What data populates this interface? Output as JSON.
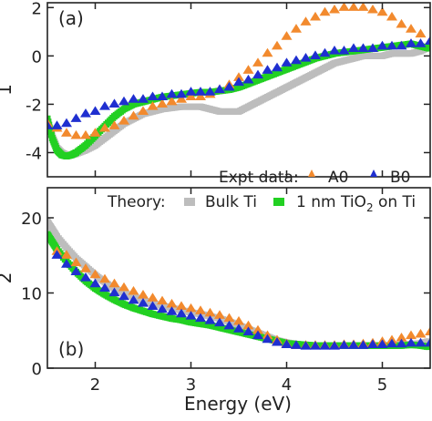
{
  "figure": {
    "xlabel": "Energy (eV)",
    "legend": {
      "expt_label": "Expt data:",
      "theory_label": "Theory:",
      "entries": [
        {
          "key": "A0",
          "label": "A0",
          "marker": "triangle",
          "color": "#f28a2e"
        },
        {
          "key": "B0",
          "label": "B0",
          "marker": "triangle",
          "color": "#1f2fd0"
        },
        {
          "key": "bulk",
          "label": "Bulk Ti",
          "marker": "square",
          "color": "#bdbdbd"
        },
        {
          "key": "film",
          "label_main": "1 nm TiO",
          "label_sub": "2",
          "label_tail": " on Ti",
          "marker": "square",
          "color": "#22d022"
        }
      ]
    }
  },
  "chart_data": [
    {
      "type": "scatter",
      "panel_label": "(a)",
      "ylabel": "1",
      "xlim": [
        1.5,
        5.5
      ],
      "ylim": [
        -5,
        2.2
      ],
      "xticks": [
        2,
        3,
        4,
        5
      ],
      "yticks": [
        -4,
        -2,
        0,
        2
      ],
      "series": [
        {
          "key": "A0",
          "x": [
            1.5,
            1.6,
            1.7,
            1.8,
            1.9,
            2.0,
            2.1,
            2.2,
            2.3,
            2.4,
            2.5,
            2.6,
            2.7,
            2.8,
            2.9,
            3.0,
            3.1,
            3.2,
            3.3,
            3.4,
            3.5,
            3.6,
            3.7,
            3.8,
            3.9,
            4.0,
            4.1,
            4.2,
            4.3,
            4.4,
            4.5,
            4.6,
            4.7,
            4.8,
            4.9,
            5.0,
            5.1,
            5.2,
            5.3,
            5.4,
            5.5
          ],
          "y": [
            -2.8,
            -3.0,
            -3.2,
            -3.3,
            -3.3,
            -3.2,
            -3.0,
            -2.9,
            -2.7,
            -2.5,
            -2.3,
            -2.1,
            -2.0,
            -1.9,
            -1.8,
            -1.7,
            -1.7,
            -1.6,
            -1.4,
            -1.2,
            -0.9,
            -0.6,
            -0.3,
            0.1,
            0.4,
            0.8,
            1.1,
            1.4,
            1.6,
            1.8,
            1.9,
            2.0,
            2.0,
            2.0,
            1.9,
            1.8,
            1.6,
            1.3,
            1.1,
            0.9,
            0.6
          ]
        },
        {
          "key": "B0",
          "x": [
            1.5,
            1.6,
            1.7,
            1.8,
            1.9,
            2.0,
            2.1,
            2.2,
            2.3,
            2.4,
            2.5,
            2.6,
            2.7,
            2.8,
            2.9,
            3.0,
            3.1,
            3.2,
            3.3,
            3.4,
            3.5,
            3.6,
            3.7,
            3.8,
            3.9,
            4.0,
            4.1,
            4.2,
            4.3,
            4.4,
            4.5,
            4.6,
            4.7,
            4.8,
            4.9,
            5.0,
            5.1,
            5.2,
            5.3,
            5.4,
            5.5
          ],
          "y": [
            -2.9,
            -2.9,
            -2.8,
            -2.6,
            -2.4,
            -2.3,
            -2.1,
            -2.0,
            -1.9,
            -1.8,
            -1.8,
            -1.7,
            -1.7,
            -1.6,
            -1.6,
            -1.5,
            -1.5,
            -1.5,
            -1.4,
            -1.3,
            -1.1,
            -1.0,
            -0.8,
            -0.6,
            -0.5,
            -0.3,
            -0.2,
            -0.1,
            0.0,
            0.1,
            0.2,
            0.2,
            0.3,
            0.3,
            0.3,
            0.4,
            0.4,
            0.4,
            0.5,
            0.5,
            0.6
          ]
        },
        {
          "key": "bulk",
          "x": [
            1.5,
            1.55,
            1.6,
            1.65,
            1.7,
            1.75,
            1.8,
            1.9,
            2.0,
            2.1,
            2.2,
            2.3,
            2.4,
            2.5,
            2.6,
            2.7,
            2.8,
            2.9,
            3.0,
            3.1,
            3.2,
            3.3,
            3.4,
            3.5,
            3.6,
            3.7,
            3.8,
            3.9,
            4.0,
            4.1,
            4.2,
            4.3,
            4.4,
            4.5,
            4.6,
            4.7,
            4.8,
            4.9,
            5.0,
            5.1,
            5.2,
            5.3,
            5.4,
            5.5
          ],
          "y": [
            -2.6,
            -3.3,
            -3.8,
            -4.0,
            -4.1,
            -4.1,
            -4.05,
            -3.9,
            -3.7,
            -3.4,
            -3.1,
            -2.8,
            -2.6,
            -2.4,
            -2.3,
            -2.2,
            -2.15,
            -2.1,
            -2.1,
            -2.1,
            -2.2,
            -2.3,
            -2.3,
            -2.3,
            -2.1,
            -1.9,
            -1.7,
            -1.5,
            -1.3,
            -1.1,
            -0.9,
            -0.7,
            -0.5,
            -0.3,
            -0.2,
            -0.1,
            0.0,
            0.0,
            0.0,
            0.1,
            0.1,
            0.1,
            0.2,
            0.4
          ]
        },
        {
          "key": "film",
          "x": [
            1.5,
            1.55,
            1.6,
            1.65,
            1.7,
            1.75,
            1.8,
            1.9,
            2.0,
            2.1,
            2.2,
            2.3,
            2.4,
            2.5,
            2.6,
            2.7,
            2.8,
            2.9,
            3.0,
            3.1,
            3.2,
            3.3,
            3.4,
            3.5,
            3.6,
            3.7,
            3.8,
            3.9,
            4.0,
            4.1,
            4.2,
            4.3,
            4.4,
            4.5,
            4.6,
            4.7,
            4.8,
            4.9,
            5.0,
            5.1,
            5.2,
            5.3,
            5.4,
            5.5
          ],
          "y": [
            -2.6,
            -3.4,
            -3.9,
            -4.1,
            -4.15,
            -4.1,
            -4.0,
            -3.7,
            -3.3,
            -2.9,
            -2.5,
            -2.2,
            -2.0,
            -1.9,
            -1.8,
            -1.7,
            -1.65,
            -1.6,
            -1.55,
            -1.5,
            -1.5,
            -1.45,
            -1.4,
            -1.3,
            -1.15,
            -1.0,
            -0.85,
            -0.7,
            -0.55,
            -0.4,
            -0.25,
            -0.1,
            0.0,
            0.1,
            0.15,
            0.2,
            0.25,
            0.3,
            0.35,
            0.4,
            0.45,
            0.5,
            0.4,
            0.3
          ]
        }
      ]
    },
    {
      "type": "scatter",
      "panel_label": "(b)",
      "ylabel": "2",
      "xlim": [
        1.5,
        5.5
      ],
      "ylim": [
        0,
        24
      ],
      "xticks": [
        2,
        3,
        4,
        5
      ],
      "yticks": [
        0,
        10,
        20
      ],
      "series": [
        {
          "key": "A0",
          "x": [
            1.6,
            1.7,
            1.8,
            1.9,
            2.0,
            2.1,
            2.2,
            2.3,
            2.4,
            2.5,
            2.6,
            2.7,
            2.8,
            2.9,
            3.0,
            3.1,
            3.2,
            3.3,
            3.4,
            3.5,
            3.6,
            3.7,
            3.8,
            3.9,
            4.0,
            4.1,
            4.2,
            4.3,
            4.4,
            4.5,
            4.6,
            4.7,
            4.8,
            4.9,
            5.0,
            5.1,
            5.2,
            5.3,
            5.4,
            5.5
          ],
          "y": [
            15.5,
            15.0,
            14.0,
            13.2,
            12.4,
            11.8,
            11.2,
            10.7,
            10.2,
            9.7,
            9.3,
            8.9,
            8.5,
            8.2,
            7.9,
            7.6,
            7.3,
            7.0,
            6.6,
            6.2,
            5.6,
            5.0,
            4.3,
            3.7,
            3.2,
            3.0,
            3.0,
            3.0,
            3.0,
            3.0,
            3.1,
            3.1,
            3.2,
            3.3,
            3.5,
            3.7,
            4.0,
            4.3,
            4.5,
            4.8
          ]
        },
        {
          "key": "B0",
          "x": [
            1.6,
            1.7,
            1.8,
            1.9,
            2.0,
            2.1,
            2.2,
            2.3,
            2.4,
            2.5,
            2.6,
            2.7,
            2.8,
            2.9,
            3.0,
            3.1,
            3.2,
            3.3,
            3.4,
            3.5,
            3.6,
            3.7,
            3.8,
            3.9,
            4.0,
            4.1,
            4.2,
            4.3,
            4.4,
            4.5,
            4.6,
            4.7,
            4.8,
            4.9,
            5.0,
            5.1,
            5.2,
            5.3,
            5.4,
            5.5
          ],
          "y": [
            15.0,
            13.8,
            12.8,
            12.0,
            11.2,
            10.6,
            10.0,
            9.5,
            9.0,
            8.6,
            8.2,
            7.8,
            7.5,
            7.2,
            6.9,
            6.6,
            6.3,
            6.0,
            5.6,
            5.2,
            4.8,
            4.3,
            3.8,
            3.4,
            3.1,
            3.0,
            2.9,
            2.9,
            2.9,
            2.9,
            3.0,
            3.0,
            3.0,
            3.1,
            3.1,
            3.2,
            3.2,
            3.3,
            3.3,
            3.3
          ]
        },
        {
          "key": "bulk",
          "x": [
            1.5,
            1.55,
            1.6,
            1.7,
            1.8,
            1.9,
            2.0,
            2.1,
            2.2,
            2.3,
            2.4,
            2.5,
            2.6,
            2.7,
            2.8,
            2.9,
            3.0,
            3.1,
            3.2,
            3.3,
            3.4,
            3.5,
            3.6,
            3.7,
            3.8,
            3.9,
            4.0,
            4.1,
            4.2,
            4.3,
            4.4,
            4.5,
            4.6,
            4.7,
            4.8,
            4.9,
            5.0,
            5.1,
            5.2,
            5.3,
            5.4,
            5.5
          ],
          "y": [
            19.5,
            18.5,
            17.5,
            16.0,
            14.6,
            13.5,
            12.4,
            11.4,
            10.6,
            10.0,
            9.5,
            9.0,
            8.6,
            8.3,
            8.0,
            7.7,
            7.4,
            7.2,
            6.9,
            6.6,
            6.2,
            5.7,
            5.2,
            4.7,
            4.2,
            3.7,
            3.4,
            3.2,
            3.1,
            3.0,
            3.0,
            3.0,
            3.0,
            3.0,
            3.0,
            3.0,
            3.0,
            3.0,
            3.1,
            3.2,
            3.3,
            3.6
          ]
        },
        {
          "key": "film",
          "x": [
            1.5,
            1.55,
            1.6,
            1.7,
            1.8,
            1.9,
            2.0,
            2.1,
            2.2,
            2.3,
            2.4,
            2.5,
            2.6,
            2.7,
            2.8,
            2.9,
            3.0,
            3.1,
            3.2,
            3.3,
            3.4,
            3.5,
            3.6,
            3.7,
            3.8,
            3.9,
            4.0,
            4.1,
            4.2,
            4.3,
            4.4,
            4.5,
            4.6,
            4.7,
            4.8,
            4.9,
            5.0,
            5.1,
            5.2,
            5.3,
            5.4,
            5.5
          ],
          "y": [
            17.8,
            16.8,
            15.8,
            14.2,
            12.8,
            11.6,
            10.6,
            9.8,
            9.1,
            8.5,
            8.0,
            7.6,
            7.2,
            6.9,
            6.6,
            6.4,
            6.1,
            5.9,
            5.7,
            5.4,
            5.1,
            4.8,
            4.5,
            4.2,
            3.9,
            3.6,
            3.3,
            3.2,
            3.1,
            3.0,
            3.0,
            3.0,
            3.0,
            3.0,
            3.0,
            3.0,
            3.0,
            3.0,
            3.0,
            3.1,
            3.0,
            2.8
          ]
        }
      ]
    }
  ]
}
